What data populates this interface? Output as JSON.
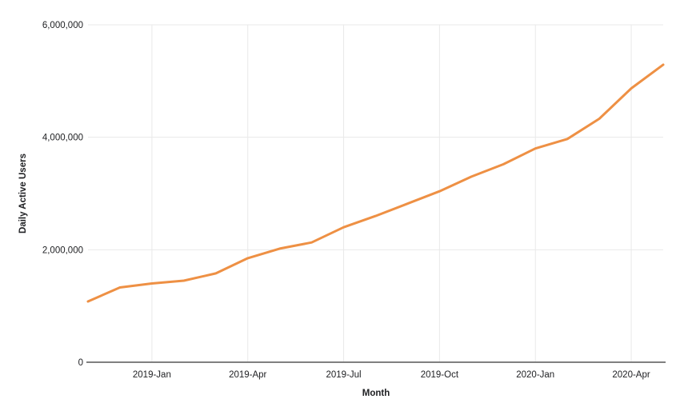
{
  "chart_data": {
    "type": "line",
    "title": "",
    "xlabel": "Month",
    "ylabel": "Daily Active Users",
    "x": [
      "2018-Nov",
      "2018-Dec",
      "2019-Jan",
      "2019-Feb",
      "2019-Mar",
      "2019-Apr",
      "2019-May",
      "2019-Jun",
      "2019-Jul",
      "2019-Aug",
      "2019-Sep",
      "2019-Oct",
      "2019-Nov",
      "2019-Dec",
      "2020-Jan",
      "2020-Feb",
      "2020-Mar",
      "2020-Apr",
      "2020-May"
    ],
    "series": [
      {
        "name": "Daily Active Users",
        "values": [
          1080000,
          1330000,
          1400000,
          1450000,
          1580000,
          1850000,
          2020000,
          2130000,
          2400000,
          2600000,
          2820000,
          3040000,
          3300000,
          3520000,
          3800000,
          3970000,
          4330000,
          4870000,
          5290000
        ]
      }
    ],
    "ylim": [
      0,
      6000000
    ],
    "ytick_values": [
      0,
      2000000,
      4000000,
      6000000
    ],
    "ytick_labels": [
      "0",
      "2,000,000",
      "4,000,000",
      "6,000,000"
    ],
    "xtick_indices": [
      2,
      5,
      8,
      11,
      14,
      17
    ],
    "xtick_labels": [
      "2019-Jan",
      "2019-Apr",
      "2019-Jul",
      "2019-Oct",
      "2020-Jan",
      "2020-Apr"
    ],
    "grid": true,
    "legend": "none",
    "colors": {
      "line": "#ee9044",
      "gridline": "#e9e9e9",
      "axis_line": "#808080",
      "tick_text": "#202124",
      "background": "#ffffff"
    }
  }
}
